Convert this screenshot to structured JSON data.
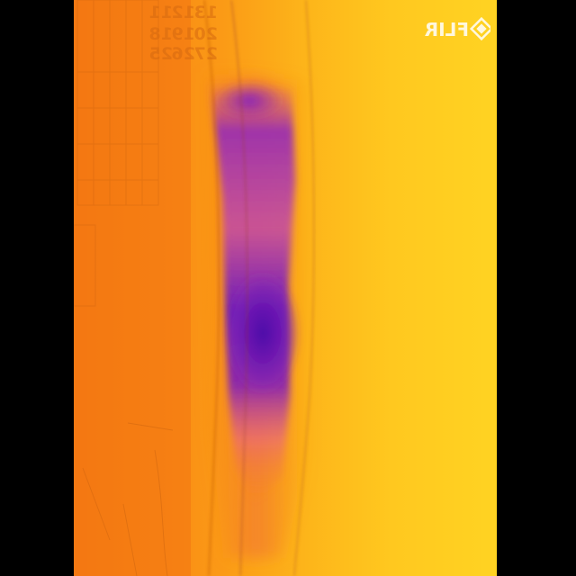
{
  "image": {
    "type": "thermal-photograph",
    "palette": "iron",
    "colors": {
      "cold": "#5a12b8",
      "cool": "#b02a9e",
      "warm": "#f57a12",
      "hot": "#ffd322",
      "letterbox": "#000000"
    }
  },
  "watermark": {
    "text": "FLIR",
    "mirrored": true
  },
  "calendar_fragment": {
    "mirrored": true,
    "visible_numbers": [
      "11",
      "12",
      "13",
      "18",
      "19",
      "20",
      "25",
      "26",
      "27"
    ]
  }
}
